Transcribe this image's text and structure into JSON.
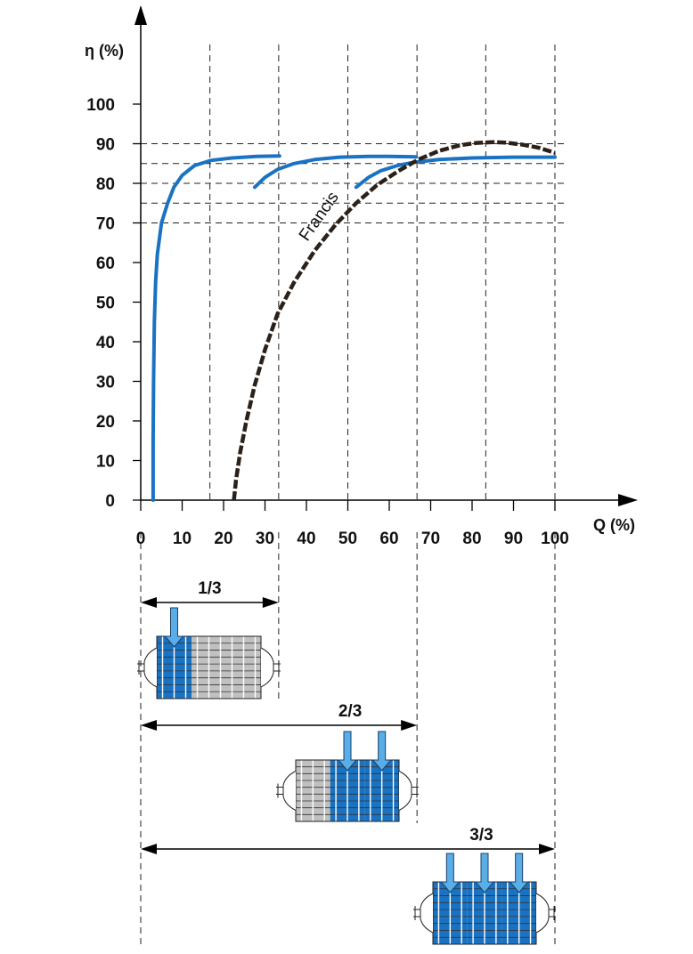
{
  "chart_data": {
    "type": "line",
    "xlabel": "Q (%)",
    "ylabel": "η (%)",
    "xlim": [
      0,
      100
    ],
    "ylim": [
      0,
      100
    ],
    "x_ticks": [
      0,
      10,
      20,
      30,
      40,
      50,
      60,
      70,
      80,
      90,
      100
    ],
    "y_ticks": [
      0,
      10,
      20,
      30,
      40,
      50,
      60,
      70,
      80,
      90,
      100
    ],
    "x_tick_labels": [
      "0",
      "10",
      "20",
      "30",
      "40",
      "50",
      "60",
      "70",
      "80",
      "90",
      "100"
    ],
    "y_tick_labels": [
      "0",
      "10",
      "20",
      "30",
      "40",
      "50",
      "60",
      "70",
      "80",
      "90",
      "100"
    ],
    "reference_lines_x": [
      16.7,
      33.3,
      50,
      66.7,
      83.3,
      100
    ],
    "reference_lines_y": [
      70,
      75,
      80,
      85,
      90
    ],
    "series": [
      {
        "style": "solid",
        "color": "#1a73c2",
        "x": [
          3,
          3,
          3.1,
          3.3,
          3.6,
          4.0,
          5.0,
          6.5,
          8.0,
          10,
          13,
          17,
          22,
          28,
          33.5
        ],
        "y": [
          0,
          15,
          30,
          45,
          55,
          62,
          70,
          75,
          79,
          82,
          84.5,
          85.8,
          86.4,
          86.8,
          86.9
        ]
      },
      {
        "style": "solid",
        "color": "#1a73c2",
        "x": [
          27.5,
          30,
          33,
          37,
          42,
          48,
          55,
          60,
          66.5
        ],
        "y": [
          79,
          81.5,
          83.5,
          85,
          86,
          86.6,
          86.8,
          86.8,
          86.7
        ]
      },
      {
        "style": "solid",
        "color": "#1a73c2",
        "x": [
          52,
          55,
          58,
          62,
          66,
          72,
          80,
          90,
          100
        ],
        "y": [
          79,
          81.5,
          83.2,
          84.5,
          85.3,
          86,
          86.4,
          86.6,
          86.6
        ]
      },
      {
        "name": "Francis",
        "style": "dashed",
        "color": "#2b2119",
        "x": [
          22.5,
          23,
          24,
          25.5,
          27.5,
          30,
          33,
          37,
          42,
          47,
          52,
          57,
          62,
          67,
          72,
          77,
          81,
          85,
          88,
          92,
          96,
          100
        ],
        "y": [
          0,
          5,
          12,
          20,
          29,
          38,
          47,
          55,
          63,
          69.5,
          75,
          79.5,
          83,
          86,
          88.2,
          89.6,
          90.2,
          90.4,
          90.3,
          89.8,
          89,
          87.7
        ]
      }
    ],
    "annotations": [
      {
        "text": "Francis",
        "at_x": 38,
        "at_y": 66
      }
    ],
    "dimensions": [
      {
        "label": "1/3",
        "from": 0,
        "to": 33.3
      },
      {
        "label": "2/3",
        "from": 0,
        "to": 66.7
      },
      {
        "label": "3/3",
        "from": 0,
        "to": 100
      }
    ],
    "units": [
      {
        "active_of_total": "1/3",
        "active": 1,
        "total": 3
      },
      {
        "active_of_total": "2/3",
        "active": 2,
        "total": 3
      },
      {
        "active_of_total": "3/3",
        "active": 3,
        "total": 3
      }
    ]
  },
  "colors": {
    "curve": "#1a73c2",
    "francis": "#2b2119",
    "active_blade": "#1a73c2",
    "inactive_blade": "#c0c0c0",
    "arrow": "#5aaee8",
    "grid": "#222222"
  }
}
